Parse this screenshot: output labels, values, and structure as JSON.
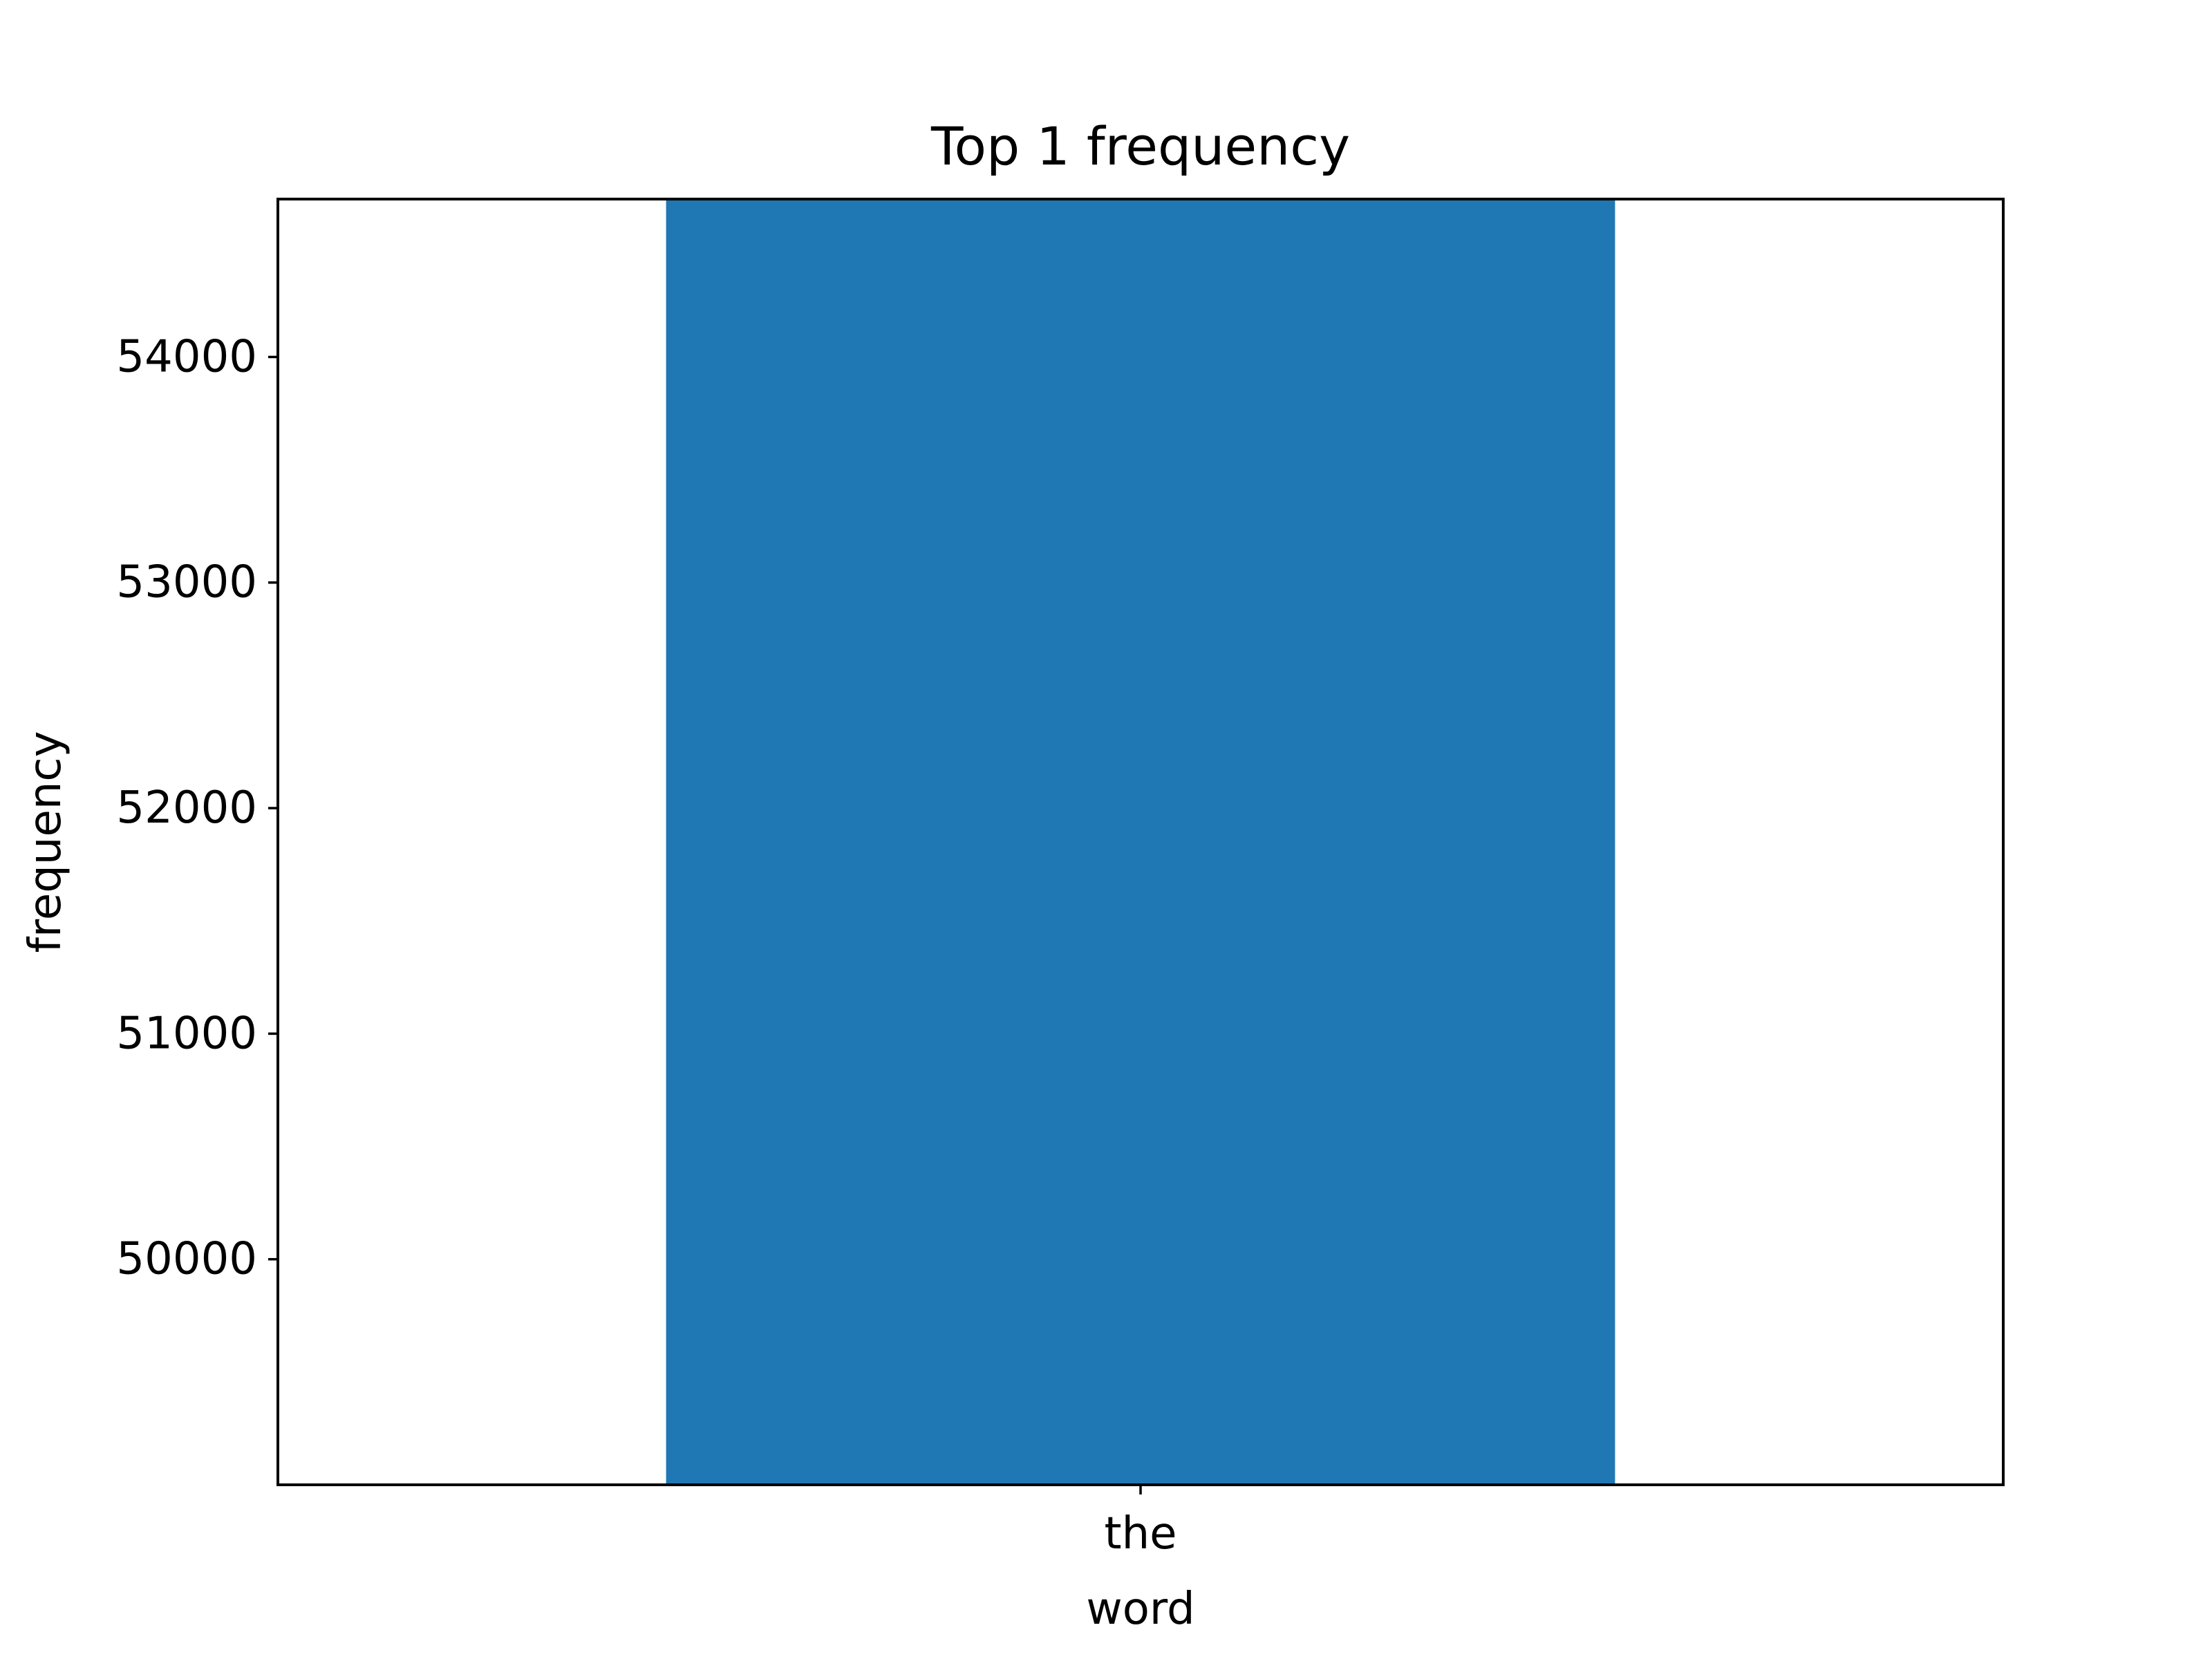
{
  "chart_data": {
    "type": "bar",
    "title": "Top 1 frequency",
    "xlabel": "word",
    "ylabel": "frequency",
    "categories": [
      "the"
    ],
    "values": [
      55000
    ],
    "ylim": [
      49000,
      54700
    ],
    "yticks": [
      50000,
      51000,
      52000,
      53000,
      54000
    ],
    "ytick_labels": [
      "50000",
      "51000",
      "52000",
      "53000",
      "54000"
    ],
    "grid": false,
    "legend": "none",
    "bar_color": "#1f77b4"
  }
}
